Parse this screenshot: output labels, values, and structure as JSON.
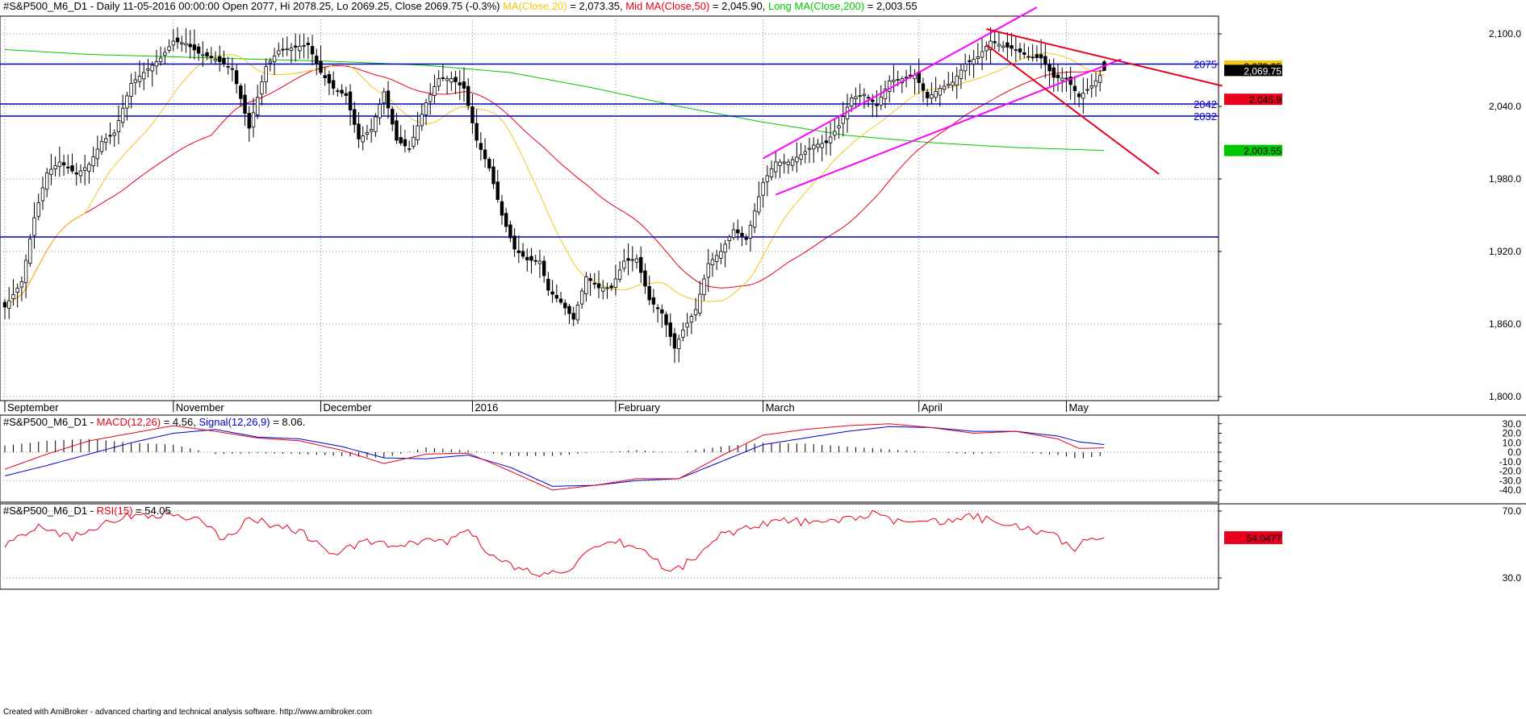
{
  "header": {
    "symbol": "#S&P500_M6_D1",
    "info": " - Daily 11-05-2016 00:00:00 Open 2077, Hi 2078.25, Lo 2069.25, Close 2069.75 (-0.3%) ",
    "ma20_label": "MA(Close,20)",
    "ma20_value": " = 2,073.35, ",
    "ma50_label": "Mid MA(Close,50)",
    "ma50_value": " = 2,045.90, ",
    "ma200_label": "Long MA(Close,200)",
    "ma200_value": " = 2,003.55"
  },
  "macd_header": {
    "symbol": "#S&P500_M6_D1 - ",
    "macd_label": "MACD(12,26)",
    "macd_value": " = 4.56, ",
    "signal_label": "Signal(12,26,9)",
    "signal_value": " = 8.06."
  },
  "rsi_header": {
    "symbol": "#S&P500_M6_D1 - ",
    "rsi_label": "RSI(15)",
    "rsi_value": " = 54.05"
  },
  "footer": "Created with AmiBroker - advanced charting and technical analysis software. http://www.amibroker.com",
  "colors": {
    "up": "#ffffff",
    "down": "#000000",
    "ma20": "#f5c518",
    "ma50": "#e8001c",
    "ma200": "#00c800",
    "hline": "#0000cc",
    "channel": "#ff00ff",
    "trend": "#e8001c",
    "macd": "#e8001c",
    "signal": "#0000cc",
    "rsi": "#e8001c"
  },
  "chart_data": [
    {
      "type": "candlestick",
      "title": "#S&P500_M6_D1 - Daily",
      "y_ticks": [
        "2,100.0",
        "2,040.0",
        "1,980.0",
        "1,920.0",
        "1,860.0",
        "1,800.0"
      ],
      "y_tick_values": [
        2100,
        2040,
        1980,
        1920,
        1860,
        1800
      ],
      "ylim": [
        1800,
        2100
      ],
      "x_labels": [
        {
          "label": "September",
          "index": 0
        },
        {
          "label": "November",
          "index": 40
        },
        {
          "label": "December",
          "index": 75
        },
        {
          "label": "2016",
          "index": 111
        },
        {
          "label": "February",
          "index": 145
        },
        {
          "label": "March",
          "index": 180
        },
        {
          "label": "April",
          "index": 217
        },
        {
          "label": "May",
          "index": 252
        }
      ],
      "last_value_labels": [
        {
          "text": "2,073.35",
          "value": 2073.35,
          "bg": "#f5c518",
          "fg": "#000000"
        },
        {
          "text": "2,069.75",
          "value": 2069.75,
          "bg": "#000000",
          "fg": "#ffffff"
        },
        {
          "text": "2,045.9",
          "value": 2045.9,
          "bg": "#e8001c",
          "fg": "#000000"
        },
        {
          "text": "2,003.55",
          "value": 2003.55,
          "bg": "#00c800",
          "fg": "#000000"
        }
      ],
      "horizontal_levels": [
        {
          "value": 2075,
          "label": "2075"
        },
        {
          "value": 2042,
          "label": "2042"
        },
        {
          "value": 2032,
          "label": "2032"
        },
        {
          "value": 1932,
          "label": ""
        }
      ],
      "close_anchors": [
        [
          0,
          1874
        ],
        [
          4,
          1895
        ],
        [
          7,
          1948
        ],
        [
          10,
          1985
        ],
        [
          13,
          1994
        ],
        [
          17,
          1984
        ],
        [
          20,
          1992
        ],
        [
          23,
          2011
        ],
        [
          26,
          2018
        ],
        [
          30,
          2059
        ],
        [
          34,
          2071
        ],
        [
          37,
          2080
        ],
        [
          40,
          2094
        ],
        [
          43,
          2092
        ],
        [
          46,
          2084
        ],
        [
          50,
          2079
        ],
        [
          54,
          2071
        ],
        [
          58,
          2022
        ],
        [
          62,
          2073
        ],
        [
          65,
          2086
        ],
        [
          69,
          2089
        ],
        [
          72,
          2091
        ],
        [
          75,
          2068
        ],
        [
          78,
          2055
        ],
        [
          81,
          2049
        ],
        [
          84,
          2013
        ],
        [
          87,
          2021
        ],
        [
          90,
          2052
        ],
        [
          93,
          2012
        ],
        [
          96,
          2005
        ],
        [
          100,
          2043
        ],
        [
          103,
          2063
        ],
        [
          106,
          2063
        ],
        [
          109,
          2055
        ],
        [
          112,
          2012
        ],
        [
          115,
          1989
        ],
        [
          118,
          1950
        ],
        [
          121,
          1922
        ],
        [
          124,
          1913
        ],
        [
          127,
          1912
        ],
        [
          129,
          1888
        ],
        [
          132,
          1878
        ],
        [
          135,
          1864
        ],
        [
          138,
          1899
        ],
        [
          141,
          1890
        ],
        [
          144,
          1890
        ],
        [
          147,
          1912
        ],
        [
          150,
          1914
        ],
        [
          153,
          1880
        ],
        [
          156,
          1869
        ],
        [
          159,
          1840
        ],
        [
          161,
          1855
        ],
        [
          164,
          1872
        ],
        [
          167,
          1910
        ],
        [
          170,
          1920
        ],
        [
          173,
          1938
        ],
        [
          176,
          1930
        ],
        [
          180,
          1977
        ],
        [
          183,
          1994
        ],
        [
          186,
          1994
        ],
        [
          189,
          2000
        ],
        [
          192,
          2008
        ],
        [
          195,
          2010
        ],
        [
          198,
          2024
        ],
        [
          201,
          2047
        ],
        [
          204,
          2050
        ],
        [
          207,
          2041
        ],
        [
          210,
          2061
        ],
        [
          213,
          2063
        ],
        [
          216,
          2066
        ],
        [
          219,
          2047
        ],
        [
          222,
          2055
        ],
        [
          225,
          2060
        ],
        [
          228,
          2075
        ],
        [
          231,
          2081
        ],
        [
          234,
          2094
        ],
        [
          237,
          2090
        ],
        [
          240,
          2087
        ],
        [
          243,
          2081
        ],
        [
          246,
          2080
        ],
        [
          249,
          2064
        ],
        [
          252,
          2063
        ],
        [
          255,
          2048
        ],
        [
          258,
          2057
        ],
        [
          261,
          2069.75
        ]
      ],
      "ma200_anchors": [
        [
          0,
          2087
        ],
        [
          20,
          2083
        ],
        [
          40,
          2081
        ],
        [
          60,
          2079
        ],
        [
          80,
          2077
        ],
        [
          100,
          2074
        ],
        [
          120,
          2068
        ],
        [
          140,
          2055
        ],
        [
          160,
          2040
        ],
        [
          180,
          2027
        ],
        [
          200,
          2016
        ],
        [
          220,
          2010
        ],
        [
          240,
          2006
        ],
        [
          261,
          2003.55
        ]
      ],
      "channel_upper": [
        [
          180,
          1997
        ],
        [
          245,
          2122
        ]
      ],
      "channel_lower": [
        [
          183,
          1967
        ],
        [
          265,
          2079
        ]
      ],
      "trend_top": [
        [
          233,
          2104
        ],
        [
          289,
          2057
        ]
      ],
      "trend_bottom": [
        [
          233,
          2091
        ],
        [
          274,
          1984
        ]
      ]
    },
    {
      "type": "line",
      "title": "MACD(12,26) / Signal(12,26,9)",
      "y_ticks": [
        "30.0",
        "20.0",
        "10.0",
        "0.0",
        "-10.0",
        "-20.0",
        "-30.0",
        "-40.0"
      ],
      "ylim": [
        -48,
        35
      ],
      "series": [
        {
          "name": "MACD(12,26)",
          "anchors": [
            [
              0,
              -18
            ],
            [
              10,
              -2
            ],
            [
              20,
              12
            ],
            [
              30,
              20
            ],
            [
              40,
              28
            ],
            [
              50,
              22
            ],
            [
              60,
              15
            ],
            [
              70,
              12
            ],
            [
              80,
              2
            ],
            [
              90,
              -12
            ],
            [
              100,
              -2
            ],
            [
              110,
              -1
            ],
            [
              120,
              -20
            ],
            [
              130,
              -40
            ],
            [
              140,
              -35
            ],
            [
              150,
              -28
            ],
            [
              160,
              -28
            ],
            [
              170,
              -4
            ],
            [
              180,
              18
            ],
            [
              190,
              24
            ],
            [
              200,
              28
            ],
            [
              210,
              30
            ],
            [
              220,
              26
            ],
            [
              230,
              20
            ],
            [
              240,
              22
            ],
            [
              250,
              14
            ],
            [
              255,
              4
            ],
            [
              261,
              4.56
            ]
          ]
        },
        {
          "name": "Signal(12,26,9)",
          "anchors": [
            [
              0,
              -25
            ],
            [
              10,
              -14
            ],
            [
              20,
              -2
            ],
            [
              30,
              10
            ],
            [
              40,
              20
            ],
            [
              50,
              24
            ],
            [
              60,
              16
            ],
            [
              70,
              14
            ],
            [
              80,
              6
            ],
            [
              90,
              -6
            ],
            [
              100,
              -7
            ],
            [
              110,
              -3
            ],
            [
              120,
              -16
            ],
            [
              130,
              -36
            ],
            [
              140,
              -35
            ],
            [
              150,
              -30
            ],
            [
              160,
              -28
            ],
            [
              170,
              -10
            ],
            [
              180,
              8
            ],
            [
              190,
              15
            ],
            [
              200,
              22
            ],
            [
              210,
              27
            ],
            [
              220,
              26
            ],
            [
              230,
              22
            ],
            [
              240,
              22
            ],
            [
              250,
              17
            ],
            [
              255,
              11
            ],
            [
              261,
              8.06
            ]
          ]
        }
      ]
    },
    {
      "type": "line",
      "title": "RSI(15)",
      "y_ticks": [
        "70.0",
        "30.0"
      ],
      "ylim": [
        27,
        73
      ],
      "last_label": "54.0477",
      "series": [
        {
          "name": "RSI(15)",
          "anchors": [
            [
              0,
              50
            ],
            [
              8,
              62
            ],
            [
              16,
              54
            ],
            [
              24,
              64
            ],
            [
              32,
              68
            ],
            [
              40,
              68
            ],
            [
              46,
              64
            ],
            [
              52,
              53
            ],
            [
              58,
              65
            ],
            [
              64,
              62
            ],
            [
              70,
              58
            ],
            [
              78,
              44
            ],
            [
              86,
              52
            ],
            [
              94,
              48
            ],
            [
              100,
              53
            ],
            [
              106,
              52
            ],
            [
              110,
              60
            ],
            [
              116,
              42
            ],
            [
              122,
              35
            ],
            [
              128,
              32
            ],
            [
              134,
              36
            ],
            [
              140,
              47
            ],
            [
              146,
              51
            ],
            [
              152,
              46
            ],
            [
              158,
              33
            ],
            [
              164,
              42
            ],
            [
              170,
              56
            ],
            [
              176,
              60
            ],
            [
              182,
              64
            ],
            [
              188,
              64
            ],
            [
              194,
              62
            ],
            [
              200,
              66
            ],
            [
              206,
              68
            ],
            [
              212,
              63
            ],
            [
              218,
              66
            ],
            [
              224,
              63
            ],
            [
              230,
              67
            ],
            [
              236,
              62
            ],
            [
              242,
              60
            ],
            [
              248,
              56
            ],
            [
              254,
              48
            ],
            [
              258,
              55
            ],
            [
              261,
              54.05
            ]
          ]
        }
      ]
    }
  ]
}
